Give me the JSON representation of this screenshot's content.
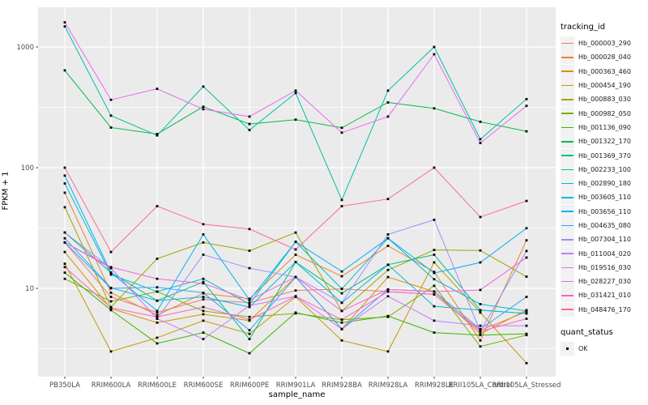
{
  "chart_data": {
    "type": "line",
    "title": "",
    "xlabel": "sample_name",
    "ylabel": "FPKM + 1",
    "y_scale": "log10",
    "y_ticks": [
      10,
      100,
      1000
    ],
    "y_minor_ticks": [
      3.1623,
      31.623,
      316.23
    ],
    "ylim": [
      1.8,
      2100
    ],
    "grid": true,
    "legend_position": "right",
    "legend_title": "tracking_id",
    "panel_bg": "#EBEBEB",
    "grid_color": "#FFFFFF",
    "tick_color": "#333333",
    "tick_label_color": "#4D4D4D",
    "point_color": "#000000",
    "categories": [
      "PB350LA",
      "RRIM600LA",
      "RRIM600LE",
      "RRIM600SE",
      "RRIM600PE",
      "RRIM901LA",
      "RRIM928BA",
      "RRIM928LA",
      "RRIM928LE",
      "RRII105LA_Control",
      "RRII105LA_Stressed"
    ],
    "series": [
      {
        "name": "Hb_000003_290",
        "color": "#F8766D",
        "values": [
          24,
          8.5,
          6.3,
          8.1,
          7.6,
          9.6,
          9.9,
          9.4,
          8.9,
          4.5,
          6.4
        ]
      },
      {
        "name": "Hb_000028_040",
        "color": "#EA8331",
        "values": [
          62,
          9.2,
          6.0,
          9.1,
          8.2,
          19,
          12.6,
          22.5,
          13.7,
          3.7,
          25
        ]
      },
      {
        "name": "Hb_000363_460",
        "color": "#D89000",
        "values": [
          20,
          6.8,
          5.2,
          6.1,
          5.4,
          12.4,
          4.6,
          12.4,
          9.4,
          4.2,
          6.6
        ]
      },
      {
        "name": "Hb_000454_190",
        "color": "#C09B00",
        "values": [
          16,
          3.0,
          3.9,
          5.4,
          4.2,
          8.5,
          3.7,
          3.0,
          16.4,
          6.3,
          2.4
        ]
      },
      {
        "name": "Hb_000883_030",
        "color": "#A3A500",
        "values": [
          47,
          7.0,
          17.6,
          24,
          20.5,
          29,
          6.5,
          14.2,
          20.8,
          20.6,
          12.5
        ]
      },
      {
        "name": "Hb_000982_050",
        "color": "#7CAE00",
        "values": [
          12,
          7.8,
          9.4,
          6.5,
          5.8,
          6.2,
          5.5,
          5.8,
          10.5,
          3.3,
          4.1
        ]
      },
      {
        "name": "Hb_001136_090",
        "color": "#39B600",
        "values": [
          13.5,
          6.6,
          3.5,
          4.3,
          2.9,
          6.3,
          5.2,
          5.9,
          4.3,
          4.1,
          4.2
        ]
      },
      {
        "name": "Hb_001322_170",
        "color": "#00BB4E",
        "values": [
          640,
          215,
          190,
          320,
          230,
          250,
          214,
          347,
          310,
          240,
          200
        ]
      },
      {
        "name": "Hb_001369_370",
        "color": "#00BF7D",
        "values": [
          29,
          13.5,
          7.9,
          11.3,
          3.8,
          16.5,
          9.1,
          15.7,
          19,
          6.6,
          6.2
        ]
      },
      {
        "name": "Hb_002233_100",
        "color": "#00C1A3",
        "values": [
          1480,
          270,
          185,
          470,
          205,
          415,
          54,
          435,
          1000,
          172,
          370
        ]
      },
      {
        "name": "Hb_002890_180",
        "color": "#00BFC4",
        "values": [
          74,
          13,
          9.4,
          12,
          7.4,
          24.3,
          9.9,
          26,
          11.9,
          7.4,
          6.5
        ]
      },
      {
        "name": "Hb_003605_110",
        "color": "#00BAE0",
        "values": [
          26,
          10.1,
          7.9,
          8.5,
          7.0,
          16.5,
          7.6,
          15.7,
          7.1,
          6.6,
          6.2
        ]
      },
      {
        "name": "Hb_003656_110",
        "color": "#00B0F6",
        "values": [
          86,
          13.5,
          6.5,
          28,
          8.0,
          24.3,
          13.8,
          26,
          13.4,
          16.4,
          31.5
        ]
      },
      {
        "name": "Hb_004635_080",
        "color": "#35A2FF",
        "values": [
          24,
          10,
          10.2,
          9.2,
          4.5,
          12.4,
          4.6,
          9.8,
          9.4,
          4.6,
          8.5
        ]
      },
      {
        "name": "Hb_007304_110",
        "color": "#9590FF",
        "values": [
          29,
          14.7,
          5.6,
          19,
          14.7,
          12.4,
          7.6,
          28,
          37,
          4.4,
          20.4
        ]
      },
      {
        "name": "Hb_011004_020",
        "color": "#C77CFF",
        "values": [
          24,
          14.7,
          5.6,
          3.8,
          7.2,
          8.6,
          4.6,
          8.6,
          5.4,
          4.9,
          4.9
        ]
      },
      {
        "name": "Hb_019516_030",
        "color": "#E76BF3",
        "values": [
          1600,
          365,
          450,
          305,
          265,
          435,
          195,
          265,
          870,
          160,
          325
        ]
      },
      {
        "name": "Hb_028227_030",
        "color": "#FA62DB",
        "values": [
          24,
          15,
          12,
          11,
          8,
          12.4,
          6.5,
          9.8,
          9.4,
          9.7,
          18
        ]
      },
      {
        "name": "Hb_031421_010",
        "color": "#FF62BC",
        "values": [
          15,
          6.9,
          5.8,
          7.0,
          5.5,
          8.6,
          5.5,
          9.4,
          8.9,
          4.4,
          5.6
        ]
      },
      {
        "name": "Hb_048476_170",
        "color": "#FF6A98",
        "values": [
          100,
          20,
          48,
          34,
          31,
          21,
          48,
          55,
          100,
          39,
          53
        ]
      }
    ],
    "quant_legend": {
      "title": "quant_status",
      "items": [
        {
          "label": "OK",
          "marker": "black-square"
        }
      ]
    }
  }
}
